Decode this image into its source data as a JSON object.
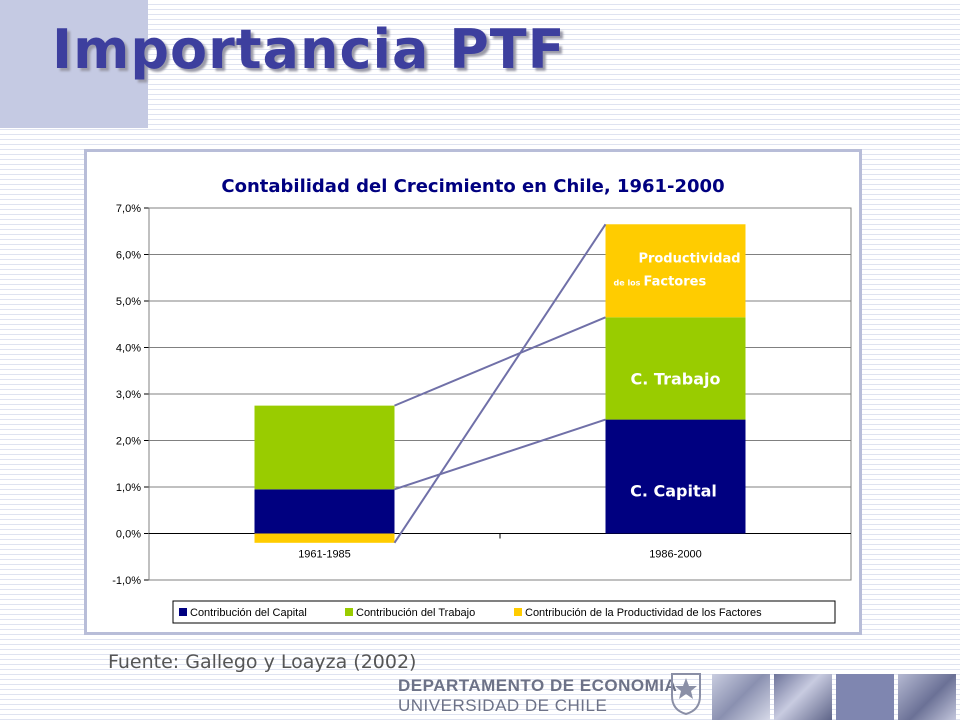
{
  "slide": {
    "title": "Importancia PTF",
    "source": "Fuente: Gallego y Loayza (2002)",
    "department_line1": "DEPARTAMENTO DE ECONOMIA",
    "department_line2": "UNIVERSIDAD DE CHILE"
  },
  "chart_data": {
    "type": "bar",
    "stacked": true,
    "title": "Contabilidad del Crecimiento en Chile, 1961-2000",
    "categories": [
      "1961-1985",
      "1986-2000"
    ],
    "series": [
      {
        "name": "Contribución del Capital",
        "values": [
          0.95,
          2.45
        ],
        "color": "#000080"
      },
      {
        "name": "Contribución del Trabajo",
        "values": [
          1.8,
          2.2
        ],
        "color": "#99cc00"
      },
      {
        "name": "Contribución de la Productividad de los Factores",
        "values": [
          -0.2,
          2.0
        ],
        "color": "#ffcc00"
      }
    ],
    "ylim": [
      -1.0,
      7.0
    ],
    "yticks": [
      "-1,0%",
      "0,0%",
      "1,0%",
      "2,0%",
      "3,0%",
      "4,0%",
      "5,0%",
      "6,0%",
      "7,0%"
    ],
    "grid": true,
    "legend_position": "bottom",
    "annotations": {
      "capital": "C. Capital",
      "trabajo": "C. Trabajo",
      "ptf_line1": "Productividad",
      "ptf_small": "de los",
      "ptf_line2": "Factores"
    },
    "colors": {
      "title": "#000080",
      "axis": "#000000",
      "grid": "#808080",
      "connector": "#7070a8",
      "label": "#ffffff"
    }
  }
}
